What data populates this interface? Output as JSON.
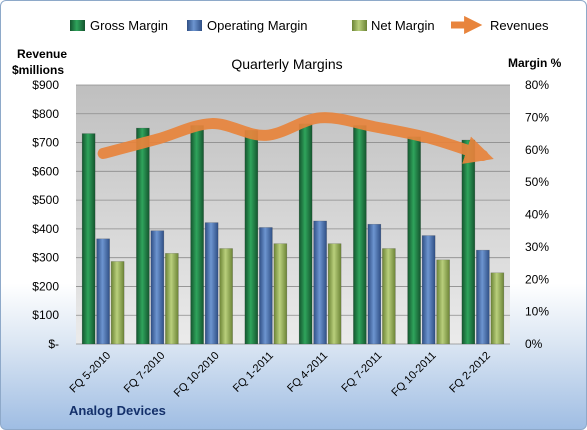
{
  "chart_data": {
    "type": "bar",
    "title": "Quarterly Margins",
    "categories": [
      "FQ 5-2010",
      "FQ 7-2010",
      "FQ 10-2010",
      "FQ 1-2011",
      "FQ 4-2011",
      "FQ 7-2011",
      "FQ 10-2011",
      "FQ 2-2012"
    ],
    "series": [
      {
        "name": "Gross Margin",
        "kind": "bar",
        "axis": "right",
        "color": "#1f7a43",
        "values": [
          65,
          66.7,
          67.5,
          66,
          68,
          67.5,
          64,
          63
        ]
      },
      {
        "name": "Operating Margin",
        "kind": "bar",
        "axis": "right",
        "color": "#4a74b4",
        "values": [
          32.5,
          35,
          37.5,
          36,
          38,
          37,
          33.5,
          29
        ]
      },
      {
        "name": "Net Margin",
        "kind": "bar",
        "axis": "right",
        "color": "#9ab35a",
        "values": [
          25.5,
          28,
          29.5,
          31,
          31,
          29.5,
          26,
          22
        ]
      },
      {
        "name": "Revenues",
        "kind": "line",
        "axis": "left",
        "color": "#e8843c",
        "values": [
          662,
          712,
          766,
          725,
          786,
          755,
          716,
          655
        ]
      }
    ],
    "y_left": {
      "label_line1": "Revenue",
      "label_line2": "$millions",
      "min": 0,
      "max": 900,
      "ticks": [
        "$-",
        "$100",
        "$200",
        "$300",
        "$400",
        "$500",
        "$600",
        "$700",
        "$800",
        "$900"
      ]
    },
    "y_right": {
      "label": "Margin %",
      "min": 0,
      "max": 80,
      "ticks": [
        "0%",
        "10%",
        "20%",
        "30%",
        "40%",
        "50%",
        "60%",
        "70%",
        "80%"
      ]
    },
    "legend_position": "top",
    "grid": true,
    "footer": "Analog Devices"
  }
}
